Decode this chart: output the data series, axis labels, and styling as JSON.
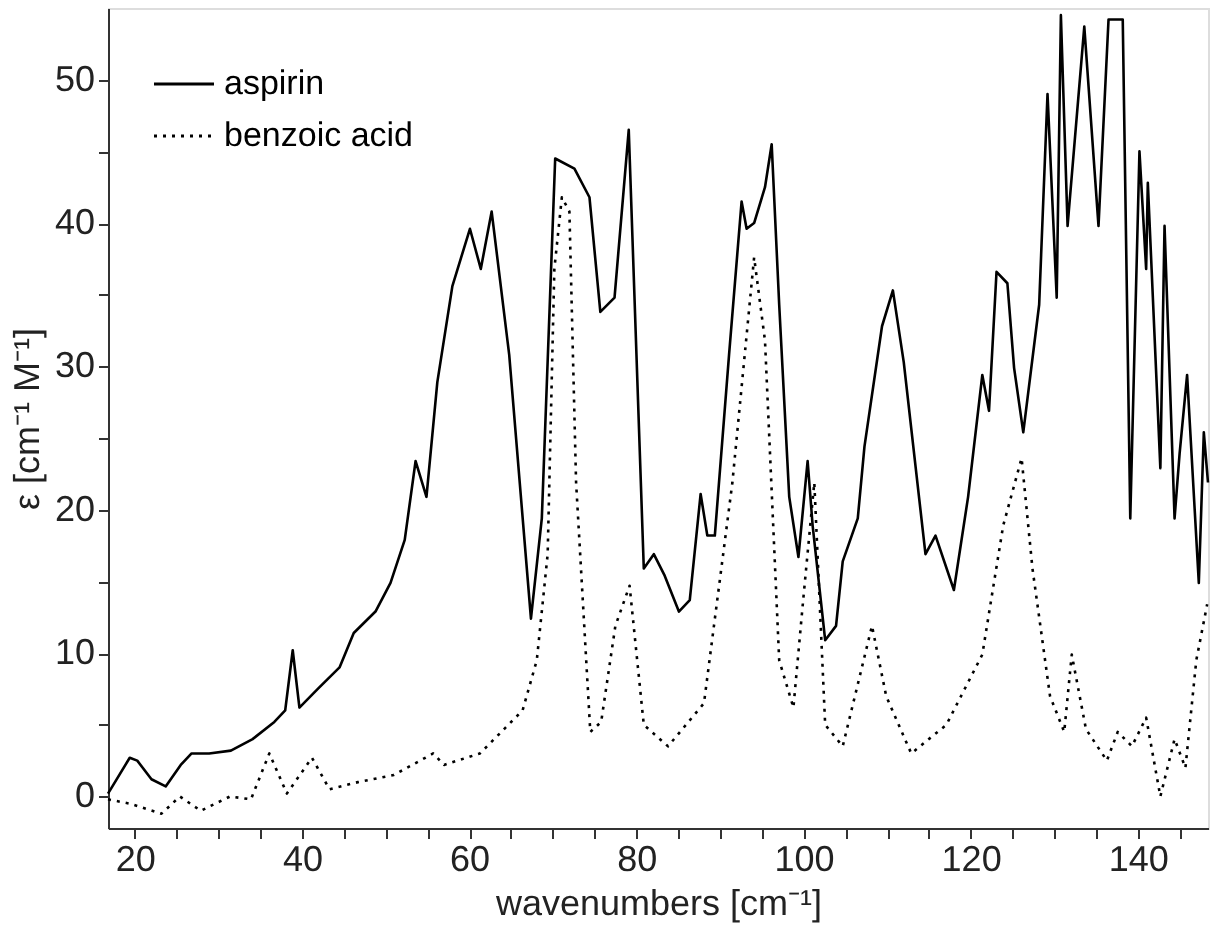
{
  "chart_data": {
    "type": "line",
    "xlabel": "wavenumbers [cm⁻¹]",
    "ylabel": "ε [cm⁻¹ M⁻¹]",
    "xlim": [
      16.8,
      148.4
    ],
    "ylim": [
      -2.2,
      55
    ],
    "xticks": [
      20,
      {
        "value": 25,
        "label": null
      },
      {
        "value": 30,
        "label": null
      },
      {
        "value": 35,
        "label": null
      },
      40,
      {
        "value": 45,
        "label": null
      },
      {
        "value": 50,
        "label": null
      },
      {
        "value": 55,
        "label": null
      },
      60,
      {
        "value": 65,
        "label": null
      },
      {
        "value": 70,
        "label": null
      },
      {
        "value": 75,
        "label": null
      },
      80,
      {
        "value": 85,
        "label": null
      },
      {
        "value": 90,
        "label": null
      },
      {
        "value": 95,
        "label": null
      },
      100,
      {
        "value": 105,
        "label": null
      },
      {
        "value": 110,
        "label": null
      },
      {
        "value": 115,
        "label": null
      },
      120,
      {
        "value": 125,
        "label": null
      },
      {
        "value": 130,
        "label": null
      },
      {
        "value": 135,
        "label": null
      },
      140,
      {
        "value": 145,
        "label": null
      }
    ],
    "yticks": [
      0,
      {
        "value": 5,
        "label": null
      },
      10,
      {
        "value": 15,
        "label": null
      },
      20,
      {
        "value": 25,
        "label": null
      },
      30,
      {
        "value": 35,
        "label": null
      },
      40,
      {
        "value": 45,
        "label": null
      },
      50
    ],
    "grid": false,
    "legend": "top left",
    "marker": "none",
    "series": [
      {
        "name": "aspirin",
        "color": "#000000",
        "line_style": "solid",
        "x": [
          16.8,
          19.4,
          20.3,
          22,
          23.7,
          25.5,
          26.8,
          28.9,
          31.5,
          34.1,
          36.7,
          38,
          38.9,
          39.7,
          41.9,
          44.5,
          46.2,
          48.8,
          50.6,
          52.3,
          53.6,
          54.9,
          56.2,
          58,
          60.1,
          61.4,
          62.7,
          64.8,
          67.4,
          68.7,
          70.3,
          72.6,
          74.4,
          75.7,
          77.4,
          79.1,
          80.9,
          82.1,
          83.4,
          85.1,
          86.4,
          87.7,
          88.5,
          89.4,
          91.1,
          92.6,
          93.2,
          94.1,
          95.4,
          96.2,
          97.1,
          98.3,
          99.4,
          100.5,
          101.1,
          102.6,
          103.9,
          104.7,
          106.5,
          107.3,
          109.4,
          110.7,
          112,
          114.6,
          115.8,
          118,
          119.7,
          121.4,
          122.2,
          123.1,
          124.4,
          125.2,
          126.3,
          128.2,
          129.2,
          130.3,
          130.8,
          131.6,
          133.6,
          135.3,
          136.5,
          138.2,
          139.1,
          140.2,
          141,
          141.2,
          142.7,
          143.2,
          144.4,
          145,
          145.9,
          147.3,
          147.9,
          148.4
        ],
        "values": [
          0.2,
          2.7,
          2.5,
          1.2,
          0.7,
          2.2,
          3.0,
          3.0,
          3.2,
          4.0,
          5.2,
          6.0,
          10.2,
          6.2,
          7.5,
          9,
          11.4,
          12.9,
          14.9,
          17.9,
          23.4,
          20.9,
          28.9,
          35.6,
          39.6,
          36.8,
          40.8,
          30.8,
          12.4,
          19.4,
          44.5,
          43.8,
          41.8,
          33.8,
          34.8,
          46.5,
          15.9,
          16.9,
          15.4,
          12.9,
          13.7,
          21.1,
          18.2,
          18.2,
          30.8,
          41.5,
          39.6,
          40,
          42.5,
          45.5,
          34.3,
          20.9,
          16.7,
          23.4,
          18.9,
          10.9,
          11.9,
          16.4,
          19.4,
          24.4,
          32.8,
          35.3,
          30.3,
          16.9,
          18.2,
          14.4,
          20.9,
          29.4,
          26.9,
          36.6,
          35.8,
          29.9,
          25.4,
          34.3,
          49,
          34.8,
          54.5,
          39.8,
          53.7,
          39.8,
          54.2,
          54.2,
          19.4,
          45,
          36.8,
          42.8,
          22.9,
          39.8,
          19.4,
          23.9,
          29.4,
          14.9,
          25.4,
          21.9
        ]
      },
      {
        "name": "benzoic acid",
        "color": "#000000",
        "line_style": "dotted",
        "x": [
          16.8,
          19.4,
          23.2,
          25.4,
          27.9,
          31.4,
          33.9,
          36.1,
          38.2,
          41.2,
          43.3,
          46.7,
          51,
          55.7,
          57,
          61.3,
          66.4,
          68.1,
          69.4,
          70.2,
          71.1,
          72,
          72.8,
          74.5,
          75.8,
          77.5,
          79.2,
          80.9,
          83.8,
          88.1,
          91.5,
          94.1,
          95.4,
          97.1,
          98.8,
          100,
          101.3,
          102.6,
          104.7,
          108.2,
          109.9,
          112.9,
          117.1,
          121.4,
          123.9,
          126.1,
          127.4,
          129.5,
          131.2,
          132.1,
          133.8,
          136.3,
          137.6,
          139.3,
          141,
          142.7,
          144.4,
          145.7,
          147,
          148.3
        ],
        "values": [
          -0.2,
          -0.5,
          -1.2,
          0,
          -1,
          0,
          -0.2,
          3.0,
          0.2,
          2.7,
          0.5,
          1.0,
          1.5,
          3.0,
          2.2,
          3.0,
          6,
          9.5,
          16.9,
          36.8,
          41.8,
          40.8,
          21.9,
          4.5,
          5.2,
          11.9,
          14.7,
          5,
          3.5,
          6.5,
          21.9,
          37.6,
          31.8,
          9.5,
          6.2,
          13.9,
          21.9,
          5,
          3.5,
          11.9,
          7,
          3.0,
          5,
          9.9,
          18.9,
          23.6,
          15.9,
          7,
          4.5,
          9.9,
          4.7,
          2.5,
          4.5,
          3.5,
          5.5,
          0,
          4,
          2,
          9.5,
          13.4
        ]
      }
    ]
  }
}
